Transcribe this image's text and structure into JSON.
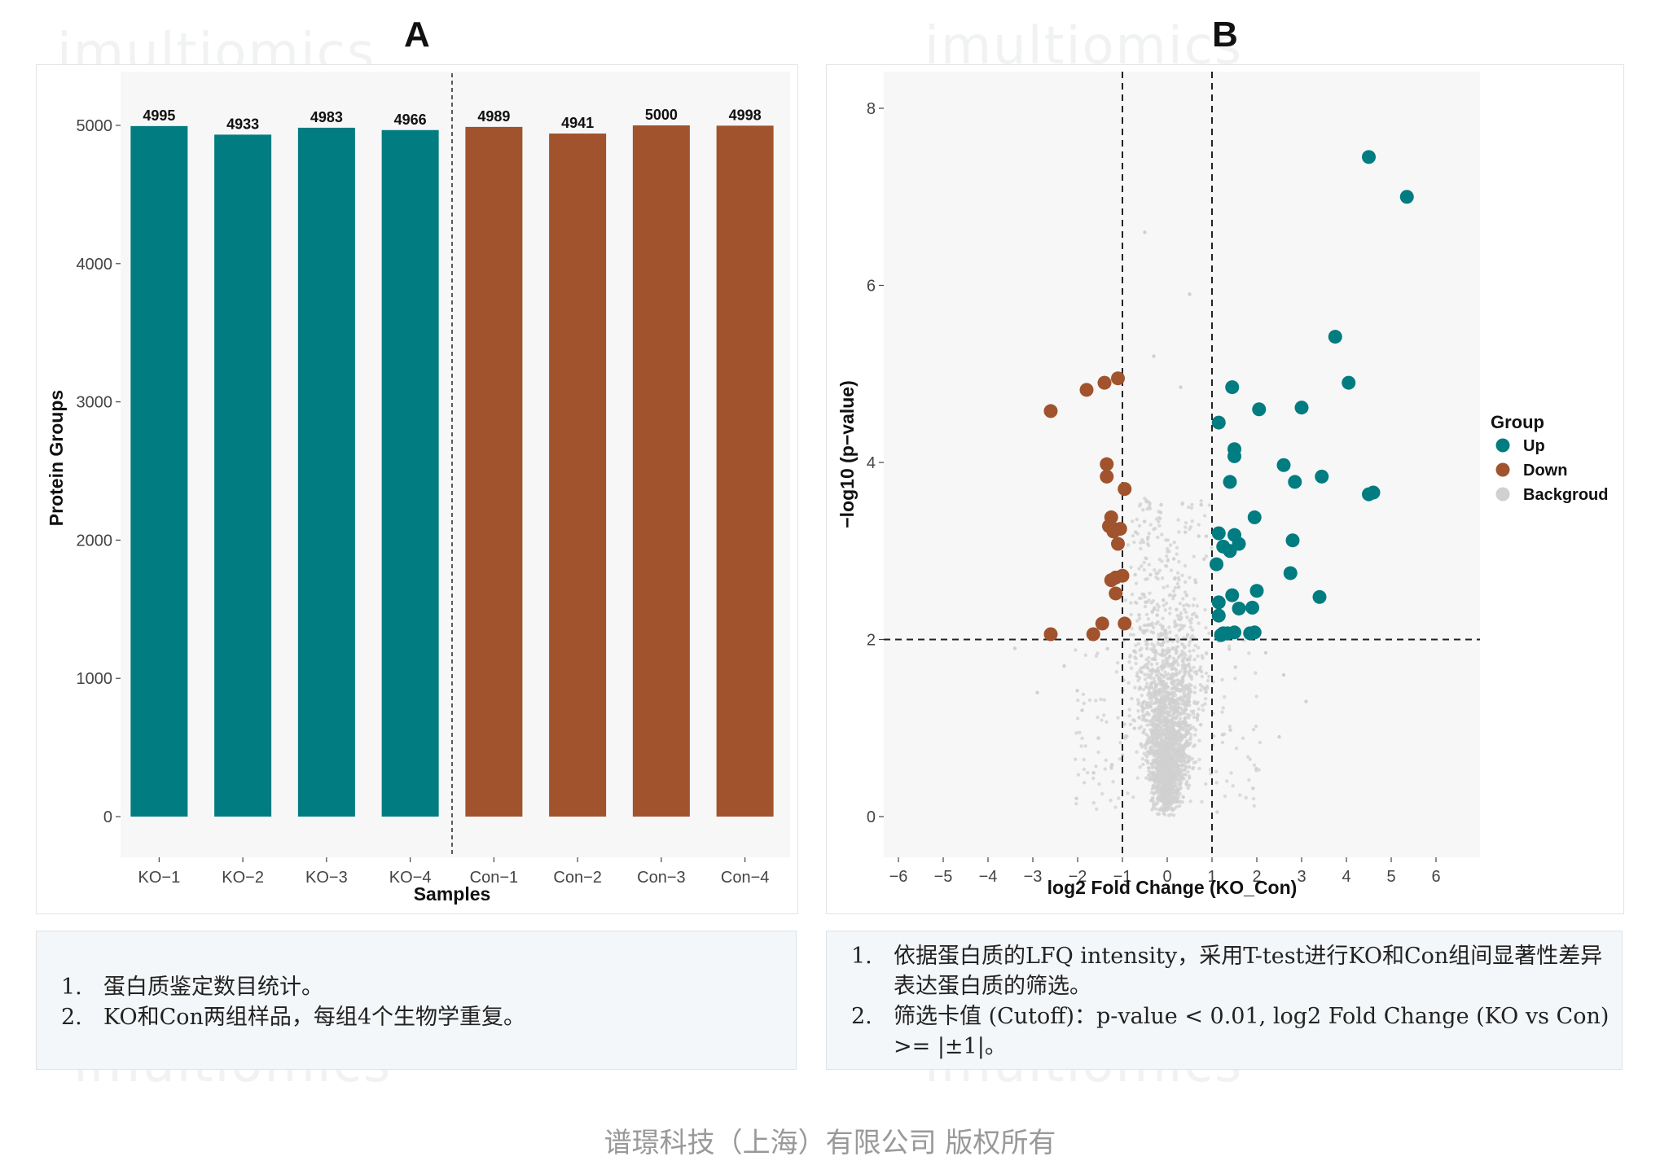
{
  "panels": {
    "a_letter": "A",
    "b_letter": "B"
  },
  "watermark_text": "imultiomics",
  "chart_data": [
    {
      "type": "bar",
      "categories": [
        "KO−1",
        "KO−2",
        "KO−3",
        "KO−4",
        "Con−1",
        "Con−2",
        "Con−3",
        "Con−4"
      ],
      "values": [
        4995,
        4933,
        4983,
        4966,
        4989,
        4941,
        5000,
        4998
      ],
      "group_colors": [
        "#017c80",
        "#017c80",
        "#017c80",
        "#017c80",
        "#a0532d",
        "#a0532d",
        "#a0532d",
        "#a0532d"
      ],
      "xlabel": "Samples",
      "ylabel": "Protein Groups",
      "ylim": [
        0,
        5200
      ],
      "yticks": [
        0,
        1000,
        2000,
        3000,
        4000,
        5000
      ],
      "divider_after_index": 3,
      "grid": false,
      "background": "#f7f7f8"
    },
    {
      "type": "scatter",
      "xlabel": "log2 Fold Change (KO_Con)",
      "ylabel": "−log10 (p−value)",
      "xlim": [
        -6.5,
        6.7
      ],
      "ylim": [
        -0.35,
        8.4
      ],
      "xticks": [
        -6,
        -5,
        -4,
        -3,
        -2,
        -1,
        0,
        1,
        2,
        3,
        4,
        5,
        6
      ],
      "xtick_labels": [
        "−6",
        "−5",
        "−4",
        "−3",
        "−2",
        "−1",
        "0",
        "1",
        "2",
        "3",
        "4",
        "5",
        "6"
      ],
      "yticks": [
        0,
        2,
        4,
        6,
        8
      ],
      "thresholds": {
        "x": [
          -1,
          1
        ],
        "y": 2
      },
      "legend_title": "Group",
      "legend_position": "right",
      "background": "#f7f7f8",
      "series": [
        {
          "name": "Up",
          "color": "#017c80",
          "points": [
            [
              4.5,
              7.45
            ],
            [
              5.35,
              7.0
            ],
            [
              3.75,
              5.42
            ],
            [
              4.05,
              4.9
            ],
            [
              1.45,
              4.85
            ],
            [
              3.0,
              4.62
            ],
            [
              2.05,
              4.6
            ],
            [
              1.15,
              4.45
            ],
            [
              1.5,
              4.15
            ],
            [
              1.5,
              4.07
            ],
            [
              2.6,
              3.97
            ],
            [
              3.45,
              3.84
            ],
            [
              2.85,
              3.78
            ],
            [
              1.4,
              3.78
            ],
            [
              4.6,
              3.66
            ],
            [
              4.5,
              3.64
            ],
            [
              1.95,
              3.38
            ],
            [
              1.15,
              3.2
            ],
            [
              1.5,
              3.18
            ],
            [
              1.25,
              3.05
            ],
            [
              1.6,
              3.08
            ],
            [
              1.4,
              3.0
            ],
            [
              2.8,
              3.12
            ],
            [
              1.1,
              2.85
            ],
            [
              2.75,
              2.75
            ],
            [
              1.45,
              2.5
            ],
            [
              2.0,
              2.55
            ],
            [
              3.4,
              2.48
            ],
            [
              1.15,
              2.42
            ],
            [
              1.6,
              2.35
            ],
            [
              1.9,
              2.36
            ],
            [
              1.15,
              2.27
            ],
            [
              1.25,
              2.07
            ],
            [
              1.35,
              2.07
            ],
            [
              1.5,
              2.08
            ],
            [
              1.85,
              2.07
            ],
            [
              1.95,
              2.08
            ],
            [
              1.2,
              2.05
            ]
          ]
        },
        {
          "name": "Down",
          "color": "#a0532d",
          "points": [
            [
              -1.1,
              4.95
            ],
            [
              -1.4,
              4.9
            ],
            [
              -1.8,
              4.82
            ],
            [
              -2.6,
              4.58
            ],
            [
              -1.35,
              3.98
            ],
            [
              -1.35,
              3.84
            ],
            [
              -0.95,
              3.7
            ],
            [
              -1.25,
              3.38
            ],
            [
              -1.3,
              3.28
            ],
            [
              -1.2,
              3.25
            ],
            [
              -1.05,
              3.25
            ],
            [
              -1.2,
              3.22
            ],
            [
              -1.1,
              3.08
            ],
            [
              -1.0,
              2.72
            ],
            [
              -1.15,
              2.7
            ],
            [
              -1.25,
              2.67
            ],
            [
              -1.15,
              2.52
            ],
            [
              -1.45,
              2.18
            ],
            [
              -0.95,
              2.18
            ],
            [
              -1.65,
              2.06
            ],
            [
              -2.6,
              2.06
            ]
          ]
        },
        {
          "name": "Backgroud",
          "color": "#d0d0d0",
          "points": "many unlabeled non-significant proteins concentrated around x = 0, y < 2"
        }
      ]
    }
  ],
  "notes": {
    "left": [
      {
        "num": "1.",
        "text": "蛋白质鉴定数目统计。"
      },
      {
        "num": "2.",
        "text": "KO和Con两组样品，每组4个生物学重复。"
      }
    ],
    "right": [
      {
        "num": "1.",
        "text": "依据蛋白质的LFQ intensity，采用T-test进行KO和Con组间显著性差异表达蛋白质的筛选。"
      },
      {
        "num": "2.",
        "text": "筛选卡值 (Cutoff)：p-value < 0.01, log2 Fold Change (KO vs Con) >= |±1|。"
      }
    ]
  },
  "footer": "谱璟科技（上海）有限公司 版权所有"
}
